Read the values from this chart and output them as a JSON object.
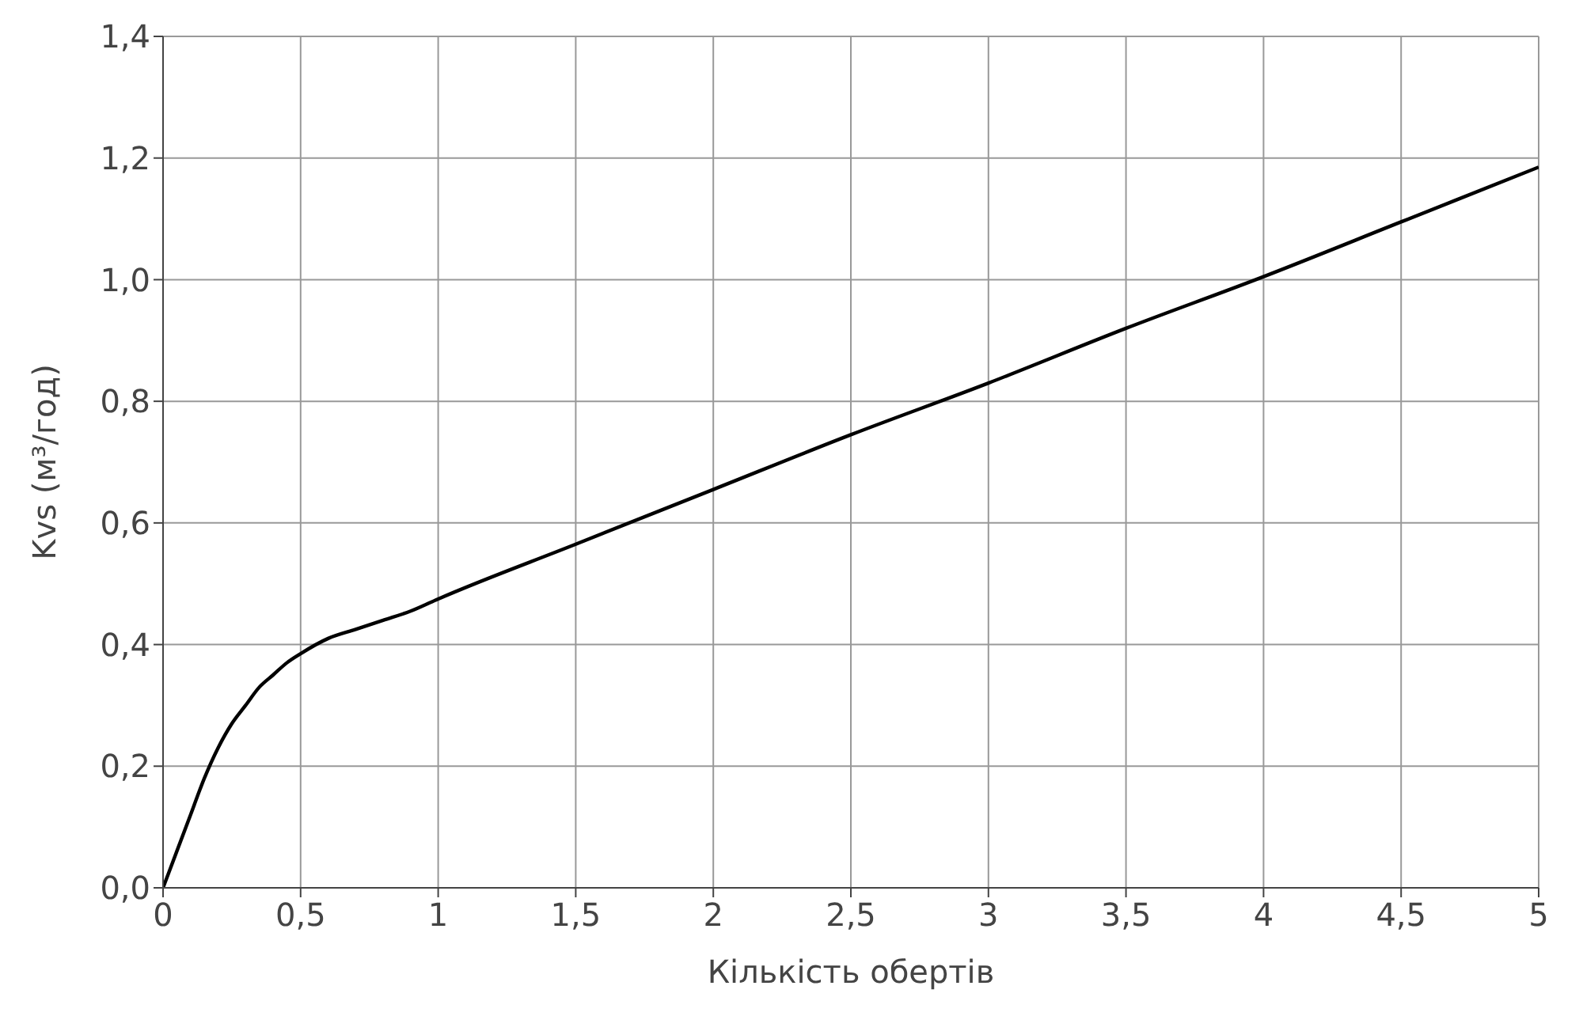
{
  "chart_data": {
    "type": "line",
    "xlabel": "Кількість обертів",
    "ylabel": "Kvs (м³/год)",
    "series": [
      {
        "color": "#000000",
        "x": [
          0,
          0.05,
          0.1,
          0.15,
          0.2,
          0.25,
          0.3,
          0.35,
          0.4,
          0.45,
          0.5,
          0.6,
          0.7,
          0.8,
          0.9,
          1,
          1.5,
          2,
          2.5,
          3,
          3.5,
          4,
          4.5,
          5
        ],
        "values": [
          0,
          0.06,
          0.12,
          0.18,
          0.23,
          0.27,
          0.3,
          0.33,
          0.35,
          0.37,
          0.385,
          0.41,
          0.425,
          0.44,
          0.455,
          0.475,
          0.565,
          0.655,
          0.745,
          0.83,
          0.92,
          1.005,
          1.095,
          1.185
        ]
      }
    ],
    "xlim": [
      0,
      5
    ],
    "ylim": [
      0,
      1.4
    ],
    "xticks": [
      0,
      {
        "value": 0.5,
        "label": "0,5"
      },
      1,
      {
        "value": 1.5,
        "label": "1,5"
      },
      2,
      {
        "value": 2.5,
        "label": "2,5"
      },
      3,
      {
        "value": 3.5,
        "label": "3,5"
      },
      4,
      {
        "value": 4.5,
        "label": "4,5"
      },
      5
    ],
    "yticks": [
      {
        "value": 0,
        "label": "0,0"
      },
      {
        "value": 0.2,
        "label": "0,2"
      },
      {
        "value": 0.4,
        "label": "0,4"
      },
      {
        "value": 0.6,
        "label": "0,6"
      },
      {
        "value": 0.8,
        "label": "0,8"
      },
      {
        "value": 1,
        "label": "1,0"
      },
      {
        "value": 1.2,
        "label": "1,2"
      },
      {
        "value": 1.4,
        "label": "1,4"
      }
    ],
    "grid": true,
    "marker": "none",
    "line_style": "solid"
  }
}
